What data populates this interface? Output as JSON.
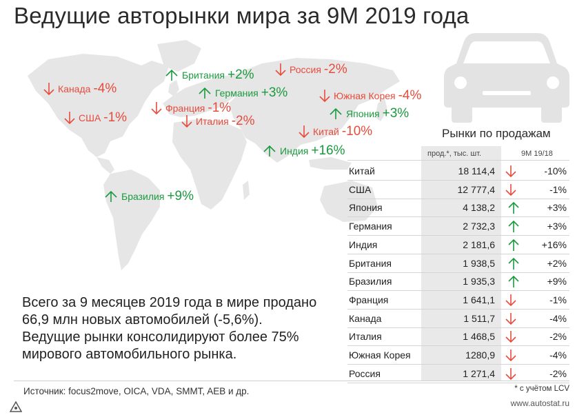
{
  "title": "Ведущие авторынки мира за 9М 2019 года",
  "map_markers": [
    {
      "name": "Канада",
      "pct": "-4%",
      "dir": "down"
    },
    {
      "name": "США",
      "pct": "-1%",
      "dir": "down"
    },
    {
      "name": "Британия",
      "pct": "+2%",
      "dir": "up"
    },
    {
      "name": "Германия",
      "pct": "+3%",
      "dir": "up"
    },
    {
      "name": "Франция",
      "pct": "-1%",
      "dir": "down"
    },
    {
      "name": "Италия",
      "pct": "-2%",
      "dir": "down"
    },
    {
      "name": "Россия",
      "pct": "-2%",
      "dir": "down"
    },
    {
      "name": "Южная Корея",
      "pct": "-4%",
      "dir": "down"
    },
    {
      "name": "Япония",
      "pct": "+3%",
      "dir": "up"
    },
    {
      "name": "Китай",
      "pct": "-10%",
      "dir": "down"
    },
    {
      "name": "Индия",
      "pct": "+16%",
      "dir": "up"
    },
    {
      "name": "Бразилия",
      "pct": "+9%",
      "dir": "up"
    }
  ],
  "table": {
    "title": "Рынки по продажам",
    "col_sales": "прод.*, тыс. шт.",
    "col_change": "9М 19/18",
    "footnote": "* с учётом LCV"
  },
  "chart_data": {
    "type": "table",
    "title": "Рынки по продажам",
    "columns": [
      "",
      "прод.*, тыс. шт.",
      "9М 19/18"
    ],
    "rows": [
      {
        "market": "Китай",
        "sales": "18 114,4",
        "change": "-10%",
        "dir": "down"
      },
      {
        "market": "США",
        "sales": "12 777,4",
        "change": "-1%",
        "dir": "down"
      },
      {
        "market": "Япония",
        "sales": "4 138,2",
        "change": "+3%",
        "dir": "up"
      },
      {
        "market": "Германия",
        "sales": "2 732,3",
        "change": "+3%",
        "dir": "up"
      },
      {
        "market": "Индия",
        "sales": "2 181,6",
        "change": "+16%",
        "dir": "up"
      },
      {
        "market": "Британия",
        "sales": "1 938,5",
        "change": "+2%",
        "dir": "up"
      },
      {
        "market": "Бразилия",
        "sales": "1 935,3",
        "change": "+9%",
        "dir": "up"
      },
      {
        "market": "Франция",
        "sales": "1 641,1",
        "change": "-1%",
        "dir": "down"
      },
      {
        "market": "Канада",
        "sales": "1 511,7",
        "change": "-4%",
        "dir": "down"
      },
      {
        "market": "Италия",
        "sales": "1 468,5",
        "change": "-2%",
        "dir": "down"
      },
      {
        "market": "Южная Корея",
        "sales": "1280,9",
        "change": "-4%",
        "dir": "down"
      },
      {
        "market": "Россия",
        "sales": "1 271,4",
        "change": "-2%",
        "dir": "down"
      }
    ]
  },
  "summary": {
    "line1": "Всего за 9 месяцев 2019 года в мире продано",
    "line2": "66,9 млн новых автомобилей (-5,6%).",
    "line3": "Ведущие рынки консолидируют более 75%",
    "line4": "мирового автомобильного рынка."
  },
  "source": "Источник: focus2move, OICA, VDA, SMMT, AEB и др.",
  "site": "www.autostat.ru",
  "colors": {
    "down": "#e64b3c",
    "up": "#1a9a3e",
    "map": "#e6e6e6",
    "car": "#e3e3e3"
  },
  "icons": {
    "car": "car-icon",
    "up": "arrow-up-icon",
    "down": "arrow-down-icon"
  }
}
